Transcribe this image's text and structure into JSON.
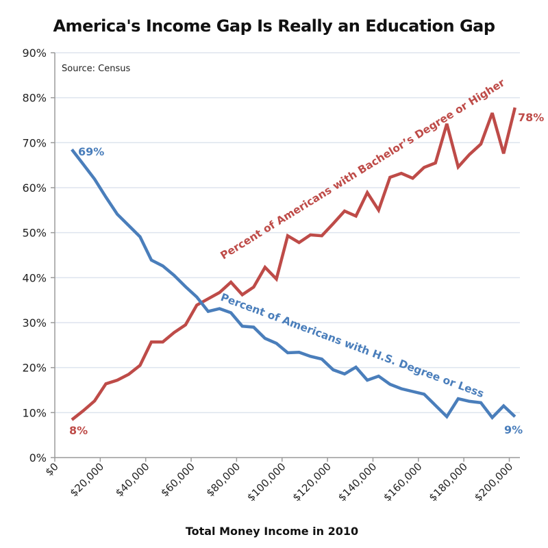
{
  "chart_data": {
    "type": "line",
    "title": "America's Income Gap Is Really an Education Gap",
    "source_note": "Source: Census",
    "xlabel": "Total Money Income in 2010",
    "ylabel": "",
    "xlim": [
      0,
      205000
    ],
    "ylim": [
      0,
      90
    ],
    "grid": true,
    "legend": "none (inline series annotations)",
    "x_ticks": [
      0,
      20000,
      40000,
      60000,
      80000,
      100000,
      120000,
      140000,
      160000,
      180000,
      200000
    ],
    "x_tick_labels": [
      "$0",
      "$20,000",
      "$40,000",
      "$60,000",
      "$80,000",
      "$100,000",
      "$120,000",
      "$140,000",
      "$160,000",
      "$180,000",
      "$200,000"
    ],
    "y_ticks": [
      0,
      10,
      20,
      30,
      40,
      50,
      60,
      70,
      80,
      90
    ],
    "y_tick_labels": [
      "0%",
      "10%",
      "20%",
      "30%",
      "40%",
      "50%",
      "60%",
      "70%",
      "80%",
      "90%"
    ],
    "x": [
      7500,
      12500,
      17500,
      22500,
      27500,
      32500,
      37500,
      42500,
      47500,
      52500,
      57500,
      62500,
      67500,
      72500,
      77500,
      82500,
      87500,
      92500,
      97500,
      102500,
      107500,
      112500,
      117500,
      122500,
      127500,
      132500,
      137500,
      142500,
      147500,
      152500,
      157500,
      162500,
      167500,
      172500,
      177500,
      182500,
      187500,
      192500,
      197500,
      202500
    ],
    "series": [
      {
        "name": "Percent of Americans with Bachelor’s Degree or Higher",
        "color": "#be4b48",
        "start_label": "8%",
        "end_label": "78%",
        "values": [
          8.4,
          10.4,
          12.6,
          16.4,
          17.2,
          18.5,
          20.5,
          25.7,
          25.7,
          27.8,
          29.5,
          33.9,
          35.3,
          36.7,
          39.0,
          36.2,
          37.9,
          42.3,
          39.7,
          49.3,
          47.8,
          49.5,
          49.3,
          52.0,
          54.8,
          53.7,
          58.9,
          55.0,
          62.3,
          63.2,
          62.1,
          64.5,
          65.5,
          74.2,
          64.6,
          67.4,
          69.7,
          76.6,
          67.6,
          77.8
        ]
      },
      {
        "name": "Percent of Americans with H.S. Degree or Less",
        "color": "#4a7ebb",
        "start_label": "69%",
        "end_label": "9%",
        "values": [
          68.5,
          65.2,
          61.9,
          57.9,
          54.1,
          51.6,
          49.1,
          43.9,
          42.6,
          40.5,
          38.0,
          35.7,
          32.5,
          33.1,
          32.2,
          29.2,
          29.0,
          26.5,
          25.4,
          23.3,
          23.4,
          22.5,
          21.9,
          19.5,
          18.6,
          20.1,
          17.2,
          18.1,
          16.3,
          15.3,
          14.7,
          14.1,
          11.6,
          9.1,
          13.1,
          12.5,
          12.2,
          8.9,
          11.5,
          9.1
        ]
      }
    ]
  },
  "colors": {
    "gridline": "#dde4ee",
    "axis": "#9a9a9a"
  }
}
